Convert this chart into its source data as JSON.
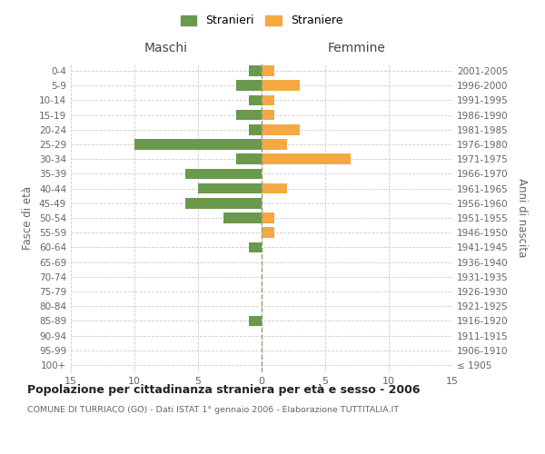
{
  "age_groups": [
    "100+",
    "95-99",
    "90-94",
    "85-89",
    "80-84",
    "75-79",
    "70-74",
    "65-69",
    "60-64",
    "55-59",
    "50-54",
    "45-49",
    "40-44",
    "35-39",
    "30-34",
    "25-29",
    "20-24",
    "15-19",
    "10-14",
    "5-9",
    "0-4"
  ],
  "birth_years": [
    "≤ 1905",
    "1906-1910",
    "1911-1915",
    "1916-1920",
    "1921-1925",
    "1926-1930",
    "1931-1935",
    "1936-1940",
    "1941-1945",
    "1946-1950",
    "1951-1955",
    "1956-1960",
    "1961-1965",
    "1966-1970",
    "1971-1975",
    "1976-1980",
    "1981-1985",
    "1986-1990",
    "1991-1995",
    "1996-2000",
    "2001-2005"
  ],
  "males": [
    0,
    0,
    0,
    1,
    0,
    0,
    0,
    0,
    1,
    0,
    3,
    6,
    5,
    6,
    2,
    10,
    1,
    2,
    1,
    2,
    1
  ],
  "females": [
    0,
    0,
    0,
    0,
    0,
    0,
    0,
    0,
    0,
    1,
    1,
    0,
    2,
    0,
    7,
    2,
    3,
    1,
    1,
    3,
    1
  ],
  "male_color": "#6a994e",
  "female_color": "#f4a942",
  "male_label": "Stranieri",
  "female_label": "Straniere",
  "left_title": "Maschi",
  "right_title": "Femmine",
  "left_ylabel": "Fasce di età",
  "right_ylabel": "Anni di nascita",
  "main_title": "Popolazione per cittadinanza straniera per età e sesso - 2006",
  "subtitle": "COMUNE DI TURRIACO (GO) - Dati ISTAT 1° gennaio 2006 - Elaborazione TUTTITALIA.IT",
  "xlim": 15,
  "background_color": "#ffffff",
  "grid_color": "#cccccc",
  "center_line_color": "#999977"
}
